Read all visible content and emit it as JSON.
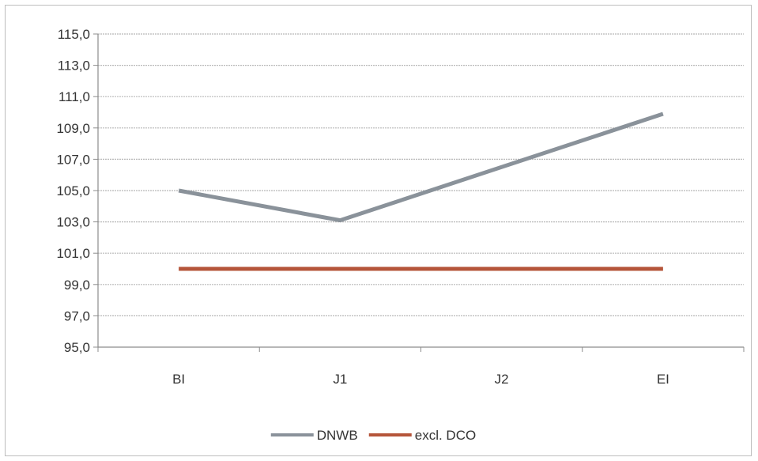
{
  "chart_data": {
    "type": "line",
    "categories": [
      "BI",
      "J1",
      "J2",
      "EI"
    ],
    "series": [
      {
        "name": "DNWB",
        "values": [
          105.0,
          103.1,
          106.5,
          109.9
        ],
        "color": "#8a929a"
      },
      {
        "name": "excl. DCO",
        "values": [
          100.0,
          100.0,
          100.0,
          100.0
        ],
        "color": "#b5553a"
      }
    ],
    "ylim": [
      95.0,
      115.0
    ],
    "yticks": [
      "95,0",
      "97,0",
      "99,0",
      "101,0",
      "103,0",
      "105,0",
      "107,0",
      "109,0",
      "111,0",
      "113,0",
      "115,0"
    ],
    "ytick_values": [
      95,
      97,
      99,
      101,
      103,
      105,
      107,
      109,
      111,
      113,
      115
    ],
    "grid": true,
    "legend": "bottom",
    "title": "",
    "xlabel": "",
    "ylabel": ""
  }
}
